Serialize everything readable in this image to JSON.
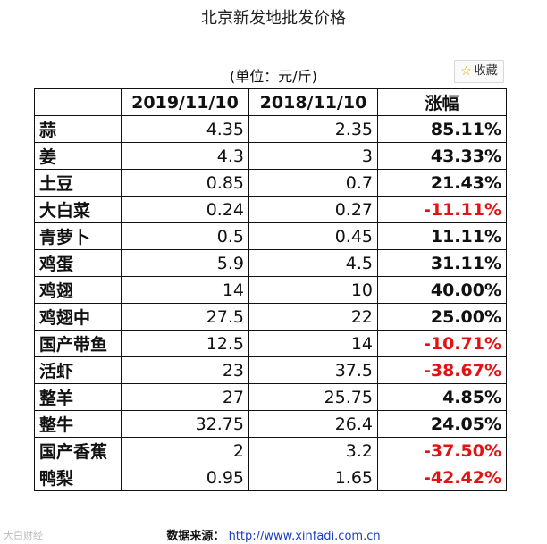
{
  "title": "北京新发地批发价格",
  "unit": "(单位：元/斤)",
  "favorite_label": "收藏",
  "headers": [
    "",
    "2019/11/10",
    "2018/11/10",
    "涨幅"
  ],
  "rows": [
    {
      "name": "蒜",
      "p2019": "4.35",
      "p2018": "2.35",
      "change": "85.11%",
      "negative": false
    },
    {
      "name": "姜",
      "p2019": "4.3",
      "p2018": "3",
      "change": "43.33%",
      "negative": false
    },
    {
      "name": "土豆",
      "p2019": "0.85",
      "p2018": "0.7",
      "change": "21.43%",
      "negative": false
    },
    {
      "name": "大白菜",
      "p2019": "0.24",
      "p2018": "0.27",
      "change": "-11.11%",
      "negative": true
    },
    {
      "name": "青萝卜",
      "p2019": "0.5",
      "p2018": "0.45",
      "change": "11.11%",
      "negative": false
    },
    {
      "name": "鸡蛋",
      "p2019": "5.9",
      "p2018": "4.5",
      "change": "31.11%",
      "negative": false
    },
    {
      "name": "鸡翅",
      "p2019": "14",
      "p2018": "10",
      "change": "40.00%",
      "negative": false
    },
    {
      "name": "鸡翅中",
      "p2019": "27.5",
      "p2018": "22",
      "change": "25.00%",
      "negative": false
    },
    {
      "name": "国产带鱼",
      "p2019": "12.5",
      "p2018": "14",
      "change": "-10.71%",
      "negative": true
    },
    {
      "name": "活虾",
      "p2019": "23",
      "p2018": "37.5",
      "change": "-38.67%",
      "negative": true
    },
    {
      "name": "整羊",
      "p2019": "27",
      "p2018": "25.75",
      "change": "4.85%",
      "negative": false
    },
    {
      "name": "整牛",
      "p2019": "32.75",
      "p2018": "26.4",
      "change": "24.05%",
      "negative": false
    },
    {
      "name": "国产香蕉",
      "p2019": "2",
      "p2018": "3.2",
      "change": "-37.50%",
      "negative": true
    },
    {
      "name": "鸭梨",
      "p2019": "0.95",
      "p2018": "1.65",
      "change": "-42.42%",
      "negative": true
    }
  ],
  "source_label": "数据来源：",
  "source_url": "http://www.xinfadi.com.cn",
  "watermark": "大白财经",
  "colors": {
    "negative": "#e01414",
    "link": "#1a3cc8"
  }
}
